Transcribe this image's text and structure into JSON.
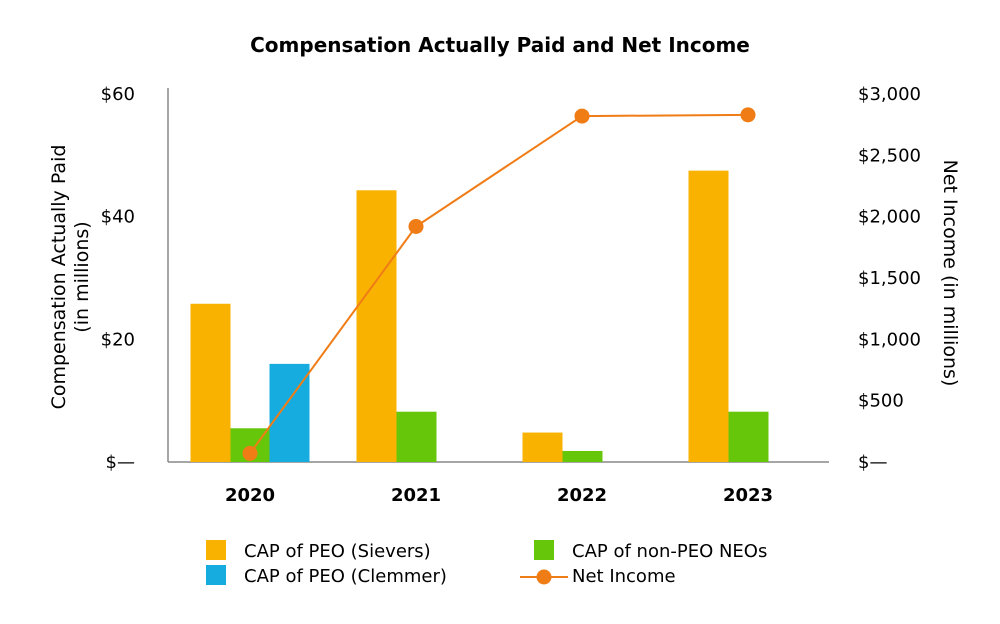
{
  "chart_data": {
    "type": "bar",
    "title": "Compensation Actually Paid and Net Income",
    "categories": [
      "2020",
      "2021",
      "2022",
      "2023"
    ],
    "y_left": {
      "label_line1": "Compensation Actually Paid",
      "label_line2": "(in millions)",
      "range": [
        0,
        60
      ],
      "ticks": [
        0,
        20,
        40,
        60
      ],
      "tick_labels": [
        "$—",
        "$20",
        "$40",
        "$60"
      ]
    },
    "y_right": {
      "label": "Net Income (in millions)",
      "range": [
        0,
        3000
      ],
      "ticks": [
        0,
        500,
        1000,
        1500,
        2000,
        2500,
        3000
      ],
      "tick_labels": [
        "$—",
        "$500",
        "$1,000",
        "$1,500",
        "$2,000",
        "$2,500",
        "$3,000"
      ]
    },
    "bar_series": [
      {
        "name": "CAP of PEO (Sievers)",
        "color": "#F9B200",
        "values": [
          25.8,
          44.3,
          4.8,
          47.5
        ]
      },
      {
        "name": "CAP of non-PEO NEOs",
        "color": "#66C70A",
        "values": [
          5.5,
          8.2,
          1.8,
          8.2
        ]
      },
      {
        "name": "CAP of PEO (Clemmer)",
        "color": "#17ACE0",
        "values": [
          16.0,
          null,
          null,
          null
        ]
      }
    ],
    "line_series": {
      "name": "Net Income",
      "color": "#F07C16",
      "values": [
        70,
        1920,
        2820,
        2830
      ]
    },
    "legend": [
      {
        "label": "CAP of PEO (Sievers)",
        "type": "bar",
        "color": "#F9B200"
      },
      {
        "label": "CAP of non-PEO NEOs",
        "type": "bar",
        "color": "#66C70A"
      },
      {
        "label": "CAP of PEO (Clemmer)",
        "type": "bar",
        "color": "#17ACE0"
      },
      {
        "label": "Net Income",
        "type": "line",
        "color": "#F07C16"
      }
    ],
    "grid": false,
    "legend_position": "bottom"
  }
}
